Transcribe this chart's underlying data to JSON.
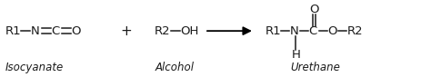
{
  "fig_width": 4.74,
  "fig_height": 0.85,
  "dpi": 100,
  "bg_color": "#ffffff",
  "text_color": "#1a1a1a",
  "font_size_chem": 9.5,
  "font_size_label": 8.5,
  "iso_label": "Isocyanate",
  "alc_label": "Alcohol",
  "ure_label": "Urethane"
}
